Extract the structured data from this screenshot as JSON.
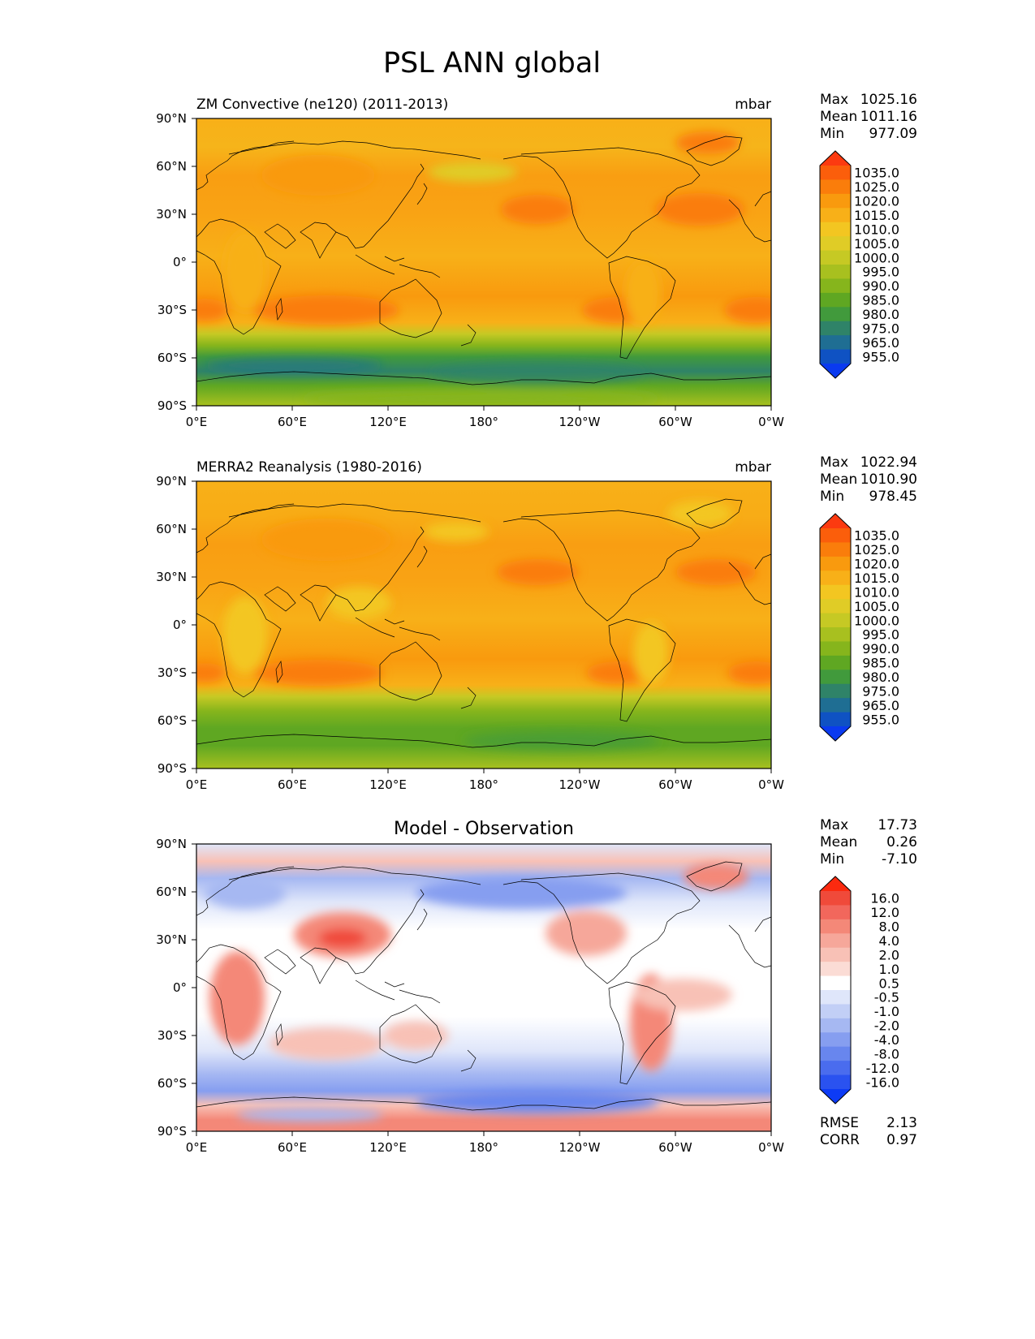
{
  "title": "PSL ANN global",
  "x_ticks": [
    "0°E",
    "60°E",
    "120°E",
    "180°",
    "120°W",
    "60°W",
    "0°W"
  ],
  "y_ticks": [
    "90°N",
    "60°N",
    "30°N",
    "0°",
    "30°S",
    "60°S",
    "90°S"
  ],
  "panels": [
    {
      "id": "model",
      "title_left": "ZM Convective (ne120) (2011-2013)",
      "title_center": "",
      "units": "mbar",
      "stats": [
        {
          "label": "Max",
          "value": "1025.16"
        },
        {
          "label": "Mean",
          "value": "1011.16"
        },
        {
          "label": "Min",
          "value": "977.09"
        }
      ],
      "colorbar_labels": [
        "1035.0",
        "1025.0",
        "1020.0",
        "1015.0",
        "1010.0",
        "1005.0",
        "1000.0",
        "995.0",
        "990.0",
        "985.0",
        "980.0",
        "975.0",
        "965.0",
        "955.0"
      ],
      "colorbar_colors": [
        "#fc3a10",
        "#fb5e0b",
        "#fa7d0b",
        "#f99a0e",
        "#f8b018",
        "#f3c621",
        "#e0cc26",
        "#c6c924",
        "#a8c01f",
        "#86b51c",
        "#5fa722",
        "#419a3c",
        "#2f8368",
        "#1f6e93",
        "#0f52c3",
        "#0a3af0"
      ],
      "field": "model"
    },
    {
      "id": "obs",
      "title_left": "MERRA2 Reanalysis (1980-2016)",
      "title_center": "",
      "units": "mbar",
      "stats": [
        {
          "label": "Max",
          "value": "1022.94"
        },
        {
          "label": "Mean",
          "value": "1010.90"
        },
        {
          "label": "Min",
          "value": "978.45"
        }
      ],
      "colorbar_labels": [
        "1035.0",
        "1025.0",
        "1020.0",
        "1015.0",
        "1010.0",
        "1005.0",
        "1000.0",
        "995.0",
        "990.0",
        "985.0",
        "980.0",
        "975.0",
        "965.0",
        "955.0"
      ],
      "colorbar_colors": [
        "#fc3a10",
        "#fb5e0b",
        "#fa7d0b",
        "#f99a0e",
        "#f8b018",
        "#f3c621",
        "#e0cc26",
        "#c6c924",
        "#a8c01f",
        "#86b51c",
        "#5fa722",
        "#419a3c",
        "#2f8368",
        "#1f6e93",
        "#0f52c3",
        "#0a3af0"
      ],
      "field": "obs"
    },
    {
      "id": "diff",
      "title_left": "",
      "title_center": "Model - Observation",
      "units": "",
      "stats": [
        {
          "label": "Max",
          "value": "17.73"
        },
        {
          "label": "Mean",
          "value": "0.26"
        },
        {
          "label": "Min",
          "value": "-7.10"
        }
      ],
      "colorbar_labels": [
        "16.0",
        "12.0",
        "8.0",
        "4.0",
        "2.0",
        "1.0",
        "0.5",
        "-0.5",
        "-1.0",
        "-2.0",
        "-4.0",
        "-8.0",
        "-12.0",
        "-16.0"
      ],
      "colorbar_colors": [
        "#fb2a0f",
        "#f04a3a",
        "#f2675c",
        "#f48878",
        "#f6a79a",
        "#f8c1b6",
        "#fbdcd5",
        "#ffffff",
        "#dfe6fa",
        "#c2cff6",
        "#a6b8f2",
        "#869ef0",
        "#6886ee",
        "#4a6cee",
        "#2a52f0",
        "#0d3bf5"
      ],
      "footer_stats": [
        {
          "label": "RMSE",
          "value": "2.13"
        },
        {
          "label": "CORR",
          "value": "0.97"
        }
      ],
      "field": "diff"
    }
  ]
}
